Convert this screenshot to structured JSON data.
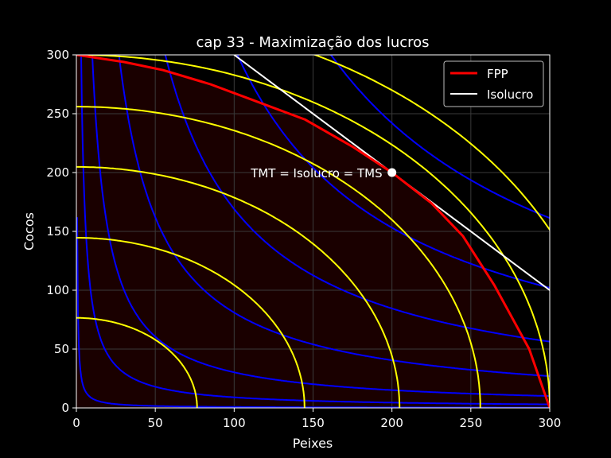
{
  "chart_data": {
    "type": "line",
    "title": "cap 33 - Maximização dos lucros",
    "xlabel": "Peixes",
    "ylabel": "Cocos",
    "xlim": [
      0,
      300
    ],
    "ylim": [
      0,
      300
    ],
    "xticks": [
      "0",
      "50",
      "100",
      "150",
      "200",
      "250",
      "300"
    ],
    "yticks": [
      "0",
      "50",
      "100",
      "150",
      "200",
      "250",
      "300"
    ],
    "grid": true,
    "legend_position": "top-right",
    "legend": [
      {
        "label": "FPP",
        "color": "#ff0000"
      },
      {
        "label": "Isolucro",
        "color": "#ffffff"
      }
    ],
    "annotation": {
      "text": "TMT = Isolucro = TMS",
      "x": 200,
      "y": 200
    },
    "series": [
      {
        "name": "FPP",
        "color": "#ff0000",
        "x": [
          0,
          30,
          55,
          85,
          115,
          145,
          175,
          200,
          225,
          245,
          265,
          287,
          300
        ],
        "y": [
          300,
          294,
          287,
          275,
          260,
          245,
          222,
          200,
          174,
          146,
          104,
          50,
          0
        ]
      },
      {
        "name": "Isolucro",
        "color": "#ffffff",
        "x": [
          100,
          300
        ],
        "y": [
          300,
          100
        ]
      }
    ],
    "production_frontier_family": {
      "color": "#ffff00",
      "radii": [
        76.5,
        144.6,
        204.8,
        256,
        300,
        336
      ]
    },
    "indifference_curve_family": {
      "color": "#0000ff",
      "levels": [
        9,
        30,
        55,
        90,
        130,
        175,
        220
      ]
    },
    "feasible_region_fill": "#1a0000"
  }
}
